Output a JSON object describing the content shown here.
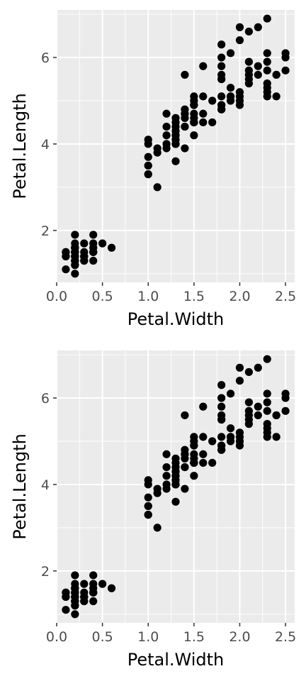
{
  "chart_data": [
    {
      "type": "scatter",
      "title": "",
      "xlabel": "Petal.Width",
      "ylabel": "Petal.Length",
      "xlim": [
        0.0,
        2.6
      ],
      "ylim": [
        0.8,
        7.1
      ],
      "xticks": [
        0.0,
        0.5,
        1.0,
        1.5,
        2.0,
        2.5
      ],
      "xtick_labels": [
        "0.0",
        "0.5",
        "1.0",
        "1.5",
        "2.0",
        "2.5"
      ],
      "yticks": [
        2,
        4,
        6
      ],
      "ytick_labels": [
        "2",
        "4",
        "6"
      ],
      "grid": true,
      "legend": "none",
      "colors": {
        "panel": "#ebebeb",
        "grid": "#ffffff",
        "point": "#000000"
      },
      "x": [
        0.2,
        0.2,
        0.2,
        0.2,
        0.2,
        0.4,
        0.3,
        0.2,
        0.2,
        0.1,
        0.2,
        0.2,
        0.1,
        0.1,
        0.2,
        0.4,
        0.4,
        0.3,
        0.3,
        0.3,
        0.2,
        0.4,
        0.2,
        0.5,
        0.2,
        0.2,
        0.4,
        0.2,
        0.2,
        0.2,
        0.2,
        0.4,
        0.1,
        0.2,
        0.2,
        0.2,
        0.2,
        0.1,
        0.2,
        0.2,
        0.3,
        0.3,
        0.2,
        0.6,
        0.4,
        0.3,
        0.2,
        0.2,
        0.2,
        0.2,
        1.4,
        1.5,
        1.5,
        1.3,
        1.5,
        1.3,
        1.6,
        1.0,
        1.3,
        1.4,
        1.0,
        1.5,
        1.0,
        1.4,
        1.3,
        1.4,
        1.5,
        1.0,
        1.5,
        1.1,
        1.8,
        1.3,
        1.5,
        1.2,
        1.3,
        1.4,
        1.4,
        1.7,
        1.5,
        1.0,
        1.1,
        1.0,
        1.2,
        1.6,
        1.5,
        1.6,
        1.5,
        1.3,
        1.3,
        1.3,
        1.2,
        1.4,
        1.2,
        1.0,
        1.3,
        1.2,
        1.3,
        1.3,
        1.1,
        1.3,
        2.5,
        1.9,
        2.1,
        1.8,
        2.2,
        2.1,
        1.7,
        1.8,
        1.8,
        2.5,
        2.0,
        1.9,
        2.1,
        2.0,
        2.4,
        2.3,
        1.8,
        2.2,
        2.3,
        1.5,
        2.3,
        2.0,
        2.0,
        1.8,
        2.1,
        1.8,
        1.8,
        1.8,
        2.1,
        1.6,
        1.9,
        2.0,
        2.2,
        1.5,
        1.4,
        2.3,
        2.4,
        1.8,
        1.8,
        2.1,
        2.4,
        2.3,
        1.9,
        2.3,
        2.5,
        2.3,
        1.9,
        2.0,
        2.3,
        1.8
      ],
      "y": [
        1.4,
        1.4,
        1.3,
        1.5,
        1.4,
        1.7,
        1.4,
        1.5,
        1.4,
        1.5,
        1.5,
        1.6,
        1.4,
        1.1,
        1.2,
        1.5,
        1.3,
        1.4,
        1.7,
        1.5,
        1.7,
        1.5,
        1.0,
        1.7,
        1.9,
        1.6,
        1.6,
        1.5,
        1.4,
        1.6,
        1.6,
        1.5,
        1.5,
        1.4,
        1.5,
        1.2,
        1.3,
        1.4,
        1.3,
        1.5,
        1.3,
        1.3,
        1.3,
        1.6,
        1.9,
        1.4,
        1.6,
        1.4,
        1.5,
        1.4,
        4.7,
        4.5,
        4.9,
        4.0,
        4.6,
        4.5,
        4.7,
        3.3,
        4.6,
        3.9,
        3.5,
        4.2,
        4.0,
        4.7,
        3.6,
        4.4,
        4.5,
        4.1,
        4.5,
        3.9,
        4.8,
        4.0,
        4.9,
        4.7,
        4.3,
        4.4,
        4.8,
        5.0,
        4.5,
        3.5,
        3.8,
        3.7,
        3.9,
        5.1,
        4.5,
        4.5,
        4.7,
        4.4,
        4.1,
        4.0,
        4.4,
        4.6,
        4.0,
        3.3,
        4.2,
        4.2,
        4.2,
        4.3,
        3.0,
        4.1,
        6.0,
        5.1,
        5.9,
        5.6,
        5.8,
        6.6,
        4.5,
        6.3,
        5.8,
        6.1,
        5.1,
        5.3,
        5.5,
        5.0,
        5.1,
        5.3,
        5.5,
        6.7,
        6.9,
        5.0,
        5.7,
        4.9,
        6.7,
        4.9,
        5.7,
        6.0,
        4.8,
        4.9,
        5.6,
        5.8,
        6.1,
        6.4,
        5.6,
        5.1,
        5.6,
        6.1,
        5.6,
        5.5,
        4.8,
        5.4,
        5.6,
        5.1,
        5.1,
        5.9,
        5.7,
        5.2,
        5.0,
        5.2,
        5.4,
        5.1
      ]
    },
    {
      "type": "scatter",
      "title": "",
      "xlabel": "Petal.Width",
      "ylabel": "Petal.Length",
      "xlim": [
        0.0,
        2.6
      ],
      "ylim": [
        0.8,
        7.1
      ],
      "xticks": [
        0.0,
        0.5,
        1.0,
        1.5,
        2.0,
        2.5
      ],
      "xtick_labels": [
        "0.0",
        "0.5",
        "1.0",
        "1.5",
        "2.0",
        "2.5"
      ],
      "yticks": [
        2,
        4,
        6
      ],
      "ytick_labels": [
        "2",
        "4",
        "6"
      ],
      "grid": true,
      "legend": "none",
      "colors": {
        "panel": "#ebebeb",
        "grid": "#ffffff",
        "point": "#000000"
      },
      "x": [
        0.2,
        0.2,
        0.2,
        0.2,
        0.2,
        0.4,
        0.3,
        0.2,
        0.2,
        0.1,
        0.2,
        0.2,
        0.1,
        0.1,
        0.2,
        0.4,
        0.4,
        0.3,
        0.3,
        0.3,
        0.2,
        0.4,
        0.2,
        0.5,
        0.2,
        0.2,
        0.4,
        0.2,
        0.2,
        0.2,
        0.2,
        0.4,
        0.1,
        0.2,
        0.2,
        0.2,
        0.2,
        0.1,
        0.2,
        0.2,
        0.3,
        0.3,
        0.2,
        0.6,
        0.4,
        0.3,
        0.2,
        0.2,
        0.2,
        0.2,
        1.4,
        1.5,
        1.5,
        1.3,
        1.5,
        1.3,
        1.6,
        1.0,
        1.3,
        1.4,
        1.0,
        1.5,
        1.0,
        1.4,
        1.3,
        1.4,
        1.5,
        1.0,
        1.5,
        1.1,
        1.8,
        1.3,
        1.5,
        1.2,
        1.3,
        1.4,
        1.4,
        1.7,
        1.5,
        1.0,
        1.1,
        1.0,
        1.2,
        1.6,
        1.5,
        1.6,
        1.5,
        1.3,
        1.3,
        1.3,
        1.2,
        1.4,
        1.2,
        1.0,
        1.3,
        1.2,
        1.3,
        1.3,
        1.1,
        1.3,
        2.5,
        1.9,
        2.1,
        1.8,
        2.2,
        2.1,
        1.7,
        1.8,
        1.8,
        2.5,
        2.0,
        1.9,
        2.1,
        2.0,
        2.4,
        2.3,
        1.8,
        2.2,
        2.3,
        1.5,
        2.3,
        2.0,
        2.0,
        1.8,
        2.1,
        1.8,
        1.8,
        1.8,
        2.1,
        1.6,
        1.9,
        2.0,
        2.2,
        1.5,
        1.4,
        2.3,
        2.4,
        1.8,
        1.8,
        2.1,
        2.4,
        2.3,
        1.9,
        2.3,
        2.5,
        2.3,
        1.9,
        2.0,
        2.3,
        1.8
      ],
      "y": [
        1.4,
        1.4,
        1.3,
        1.5,
        1.4,
        1.7,
        1.4,
        1.5,
        1.4,
        1.5,
        1.5,
        1.6,
        1.4,
        1.1,
        1.2,
        1.5,
        1.3,
        1.4,
        1.7,
        1.5,
        1.7,
        1.5,
        1.0,
        1.7,
        1.9,
        1.6,
        1.6,
        1.5,
        1.4,
        1.6,
        1.6,
        1.5,
        1.5,
        1.4,
        1.5,
        1.2,
        1.3,
        1.4,
        1.3,
        1.5,
        1.3,
        1.3,
        1.3,
        1.6,
        1.9,
        1.4,
        1.6,
        1.4,
        1.5,
        1.4,
        4.7,
        4.5,
        4.9,
        4.0,
        4.6,
        4.5,
        4.7,
        3.3,
        4.6,
        3.9,
        3.5,
        4.2,
        4.0,
        4.7,
        3.6,
        4.4,
        4.5,
        4.1,
        4.5,
        3.9,
        4.8,
        4.0,
        4.9,
        4.7,
        4.3,
        4.4,
        4.8,
        5.0,
        4.5,
        3.5,
        3.8,
        3.7,
        3.9,
        5.1,
        4.5,
        4.5,
        4.7,
        4.4,
        4.1,
        4.0,
        4.4,
        4.6,
        4.0,
        3.3,
        4.2,
        4.2,
        4.2,
        4.3,
        3.0,
        4.1,
        6.0,
        5.1,
        5.9,
        5.6,
        5.8,
        6.6,
        4.5,
        6.3,
        5.8,
        6.1,
        5.1,
        5.3,
        5.5,
        5.0,
        5.1,
        5.3,
        5.5,
        6.7,
        6.9,
        5.0,
        5.7,
        4.9,
        6.7,
        4.9,
        5.7,
        6.0,
        4.8,
        4.9,
        5.6,
        5.8,
        6.1,
        6.4,
        5.6,
        5.1,
        5.6,
        6.1,
        5.6,
        5.5,
        4.8,
        5.4,
        5.6,
        5.1,
        5.1,
        5.9,
        5.7,
        5.2,
        5.0,
        5.2,
        5.4,
        5.1
      ]
    }
  ]
}
